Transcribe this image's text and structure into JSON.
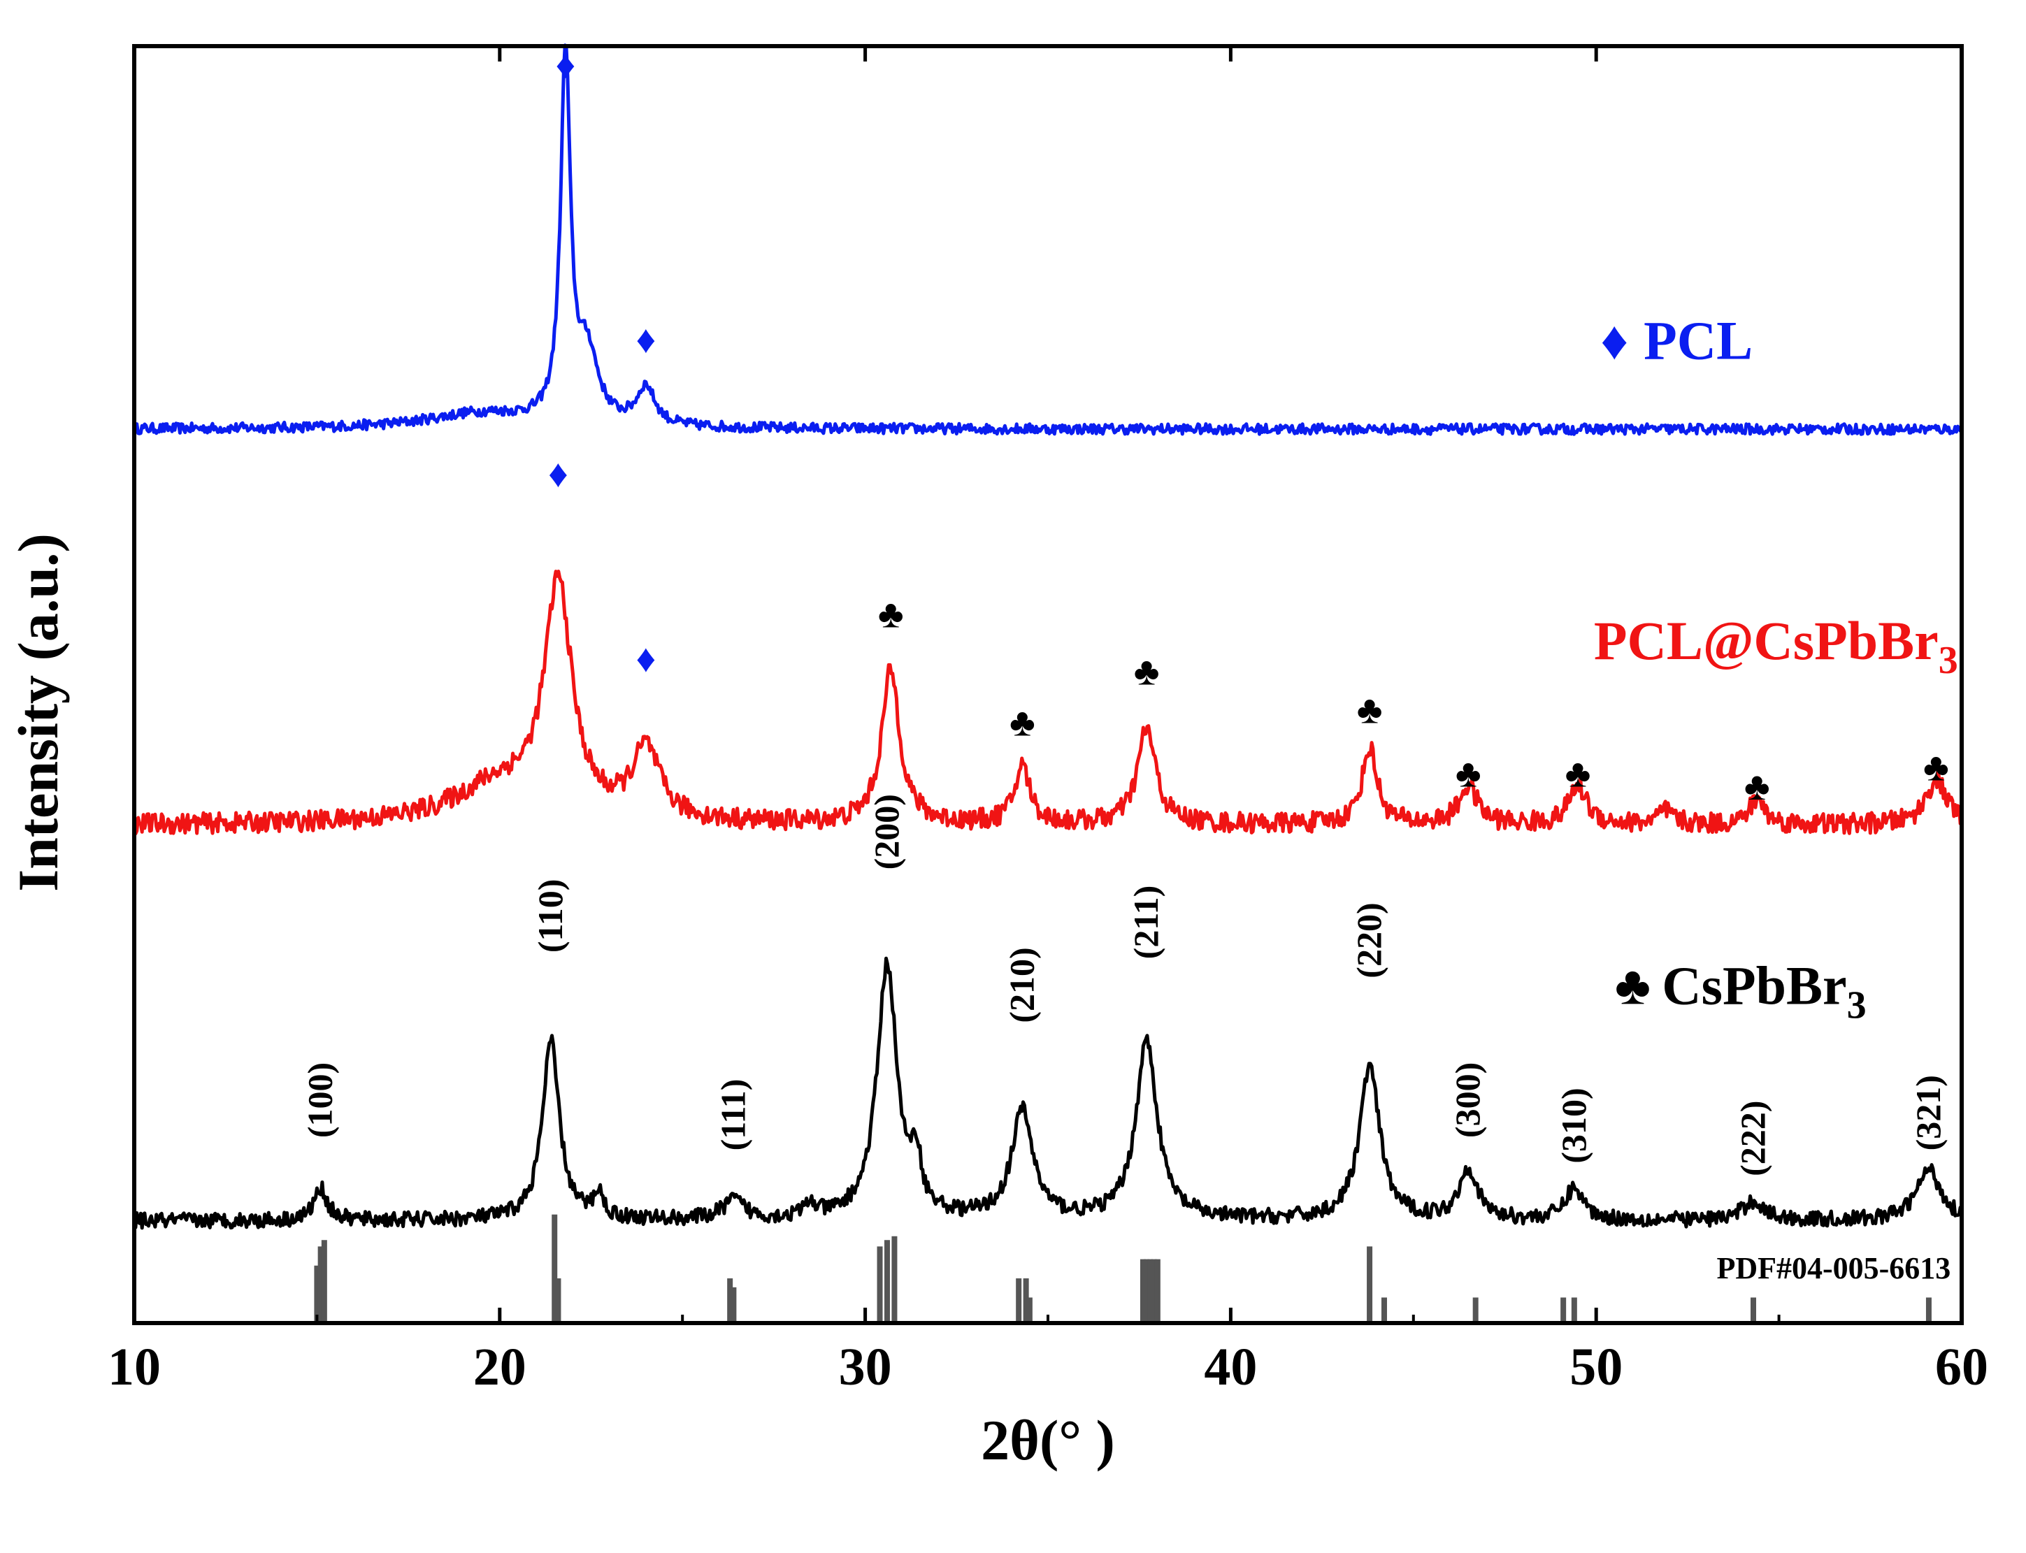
{
  "chart_data": {
    "type": "line",
    "xlabel": "2θ(°  )",
    "ylabel": "Intensity (a.u.)",
    "xlim": [
      10,
      60
    ],
    "xticks": [
      10,
      20,
      30,
      40,
      50,
      60
    ],
    "xtick_labels": [
      "10",
      "20",
      "30",
      "40",
      "50",
      "60"
    ],
    "yticks": "none",
    "grid": false,
    "series": [
      {
        "name": "PCL",
        "legend_label": "PCL",
        "legend_symbol": "♦",
        "color": "#0a1ef0",
        "baseline": 0.7,
        "noise": 0.004,
        "peaks": [
          {
            "x": 21.8,
            "height": 0.285,
            "width": 0.16
          },
          {
            "x": 22.4,
            "height": 0.055,
            "width": 0.35
          },
          {
            "x": 24.0,
            "height": 0.03,
            "width": 0.3
          },
          {
            "x": 19.5,
            "height": 0.012,
            "width": 1.8
          }
        ]
      },
      {
        "name": "PCL@CsPbBr3",
        "legend_label": "PCL@CsPbBr",
        "legend_sub": "3",
        "color": "#f01414",
        "baseline": 0.39,
        "noise": 0.008,
        "peaks": [
          {
            "x": 21.6,
            "height": 0.18,
            "width": 0.45
          },
          {
            "x": 24.0,
            "height": 0.055,
            "width": 0.45
          },
          {
            "x": 20.0,
            "height": 0.03,
            "width": 1.5
          },
          {
            "x": 30.7,
            "height": 0.12,
            "width": 0.3
          },
          {
            "x": 34.3,
            "height": 0.045,
            "width": 0.25
          },
          {
            "x": 37.7,
            "height": 0.075,
            "width": 0.3
          },
          {
            "x": 43.8,
            "height": 0.06,
            "width": 0.25
          },
          {
            "x": 46.5,
            "height": 0.03,
            "width": 0.3
          },
          {
            "x": 49.5,
            "height": 0.03,
            "width": 0.3
          },
          {
            "x": 51.9,
            "height": 0.01,
            "width": 0.25
          },
          {
            "x": 54.4,
            "height": 0.02,
            "width": 0.25
          },
          {
            "x": 59.3,
            "height": 0.035,
            "width": 0.35
          }
        ]
      },
      {
        "name": "CsPbBr3",
        "legend_label": "CsPbBr",
        "legend_sub": "3",
        "legend_symbol": "♣",
        "color": "#000000",
        "baseline": 0.08,
        "noise": 0.006,
        "peaks": [
          {
            "x": 15.1,
            "height": 0.025,
            "width": 0.22
          },
          {
            "x": 21.4,
            "height": 0.14,
            "width": 0.28
          },
          {
            "x": 22.7,
            "height": 0.02,
            "width": 0.15
          },
          {
            "x": 26.4,
            "height": 0.015,
            "width": 0.35
          },
          {
            "x": 28.5,
            "height": 0.01,
            "width": 0.2
          },
          {
            "x": 30.6,
            "height": 0.2,
            "width": 0.33
          },
          {
            "x": 31.4,
            "height": 0.04,
            "width": 0.15
          },
          {
            "x": 34.3,
            "height": 0.085,
            "width": 0.35
          },
          {
            "x": 37.7,
            "height": 0.14,
            "width": 0.35
          },
          {
            "x": 43.8,
            "height": 0.12,
            "width": 0.33
          },
          {
            "x": 46.5,
            "height": 0.04,
            "width": 0.3
          },
          {
            "x": 49.4,
            "height": 0.025,
            "width": 0.3
          },
          {
            "x": 54.3,
            "height": 0.015,
            "width": 0.35
          },
          {
            "x": 59.1,
            "height": 0.04,
            "width": 0.4
          }
        ]
      }
    ],
    "pcl_markers": [
      {
        "x": 21.8,
        "y": 0.975
      },
      {
        "x": 24.0,
        "y": 0.76
      }
    ],
    "hybrid_markers": [
      {
        "symbol": "♦",
        "x": 21.6,
        "y": 0.655
      },
      {
        "symbol": "♦",
        "x": 24.0,
        "y": 0.51
      },
      {
        "symbol": "♣",
        "x": 30.7,
        "y": 0.545
      },
      {
        "symbol": "♣",
        "x": 34.3,
        "y": 0.46
      },
      {
        "symbol": "♣",
        "x": 37.7,
        "y": 0.5
      },
      {
        "symbol": "♣",
        "x": 43.8,
        "y": 0.47
      },
      {
        "symbol": "♣",
        "x": 46.5,
        "y": 0.42
      },
      {
        "symbol": "♣",
        "x": 49.5,
        "y": 0.42
      },
      {
        "symbol": "♣",
        "x": 54.4,
        "y": 0.41
      },
      {
        "symbol": "♣",
        "x": 59.3,
        "y": 0.425
      }
    ],
    "miller_indices": [
      {
        "label": "(100)",
        "x": 15.1,
        "y": 0.145
      },
      {
        "label": "(110)",
        "x": 21.4,
        "y": 0.29
      },
      {
        "label": "(111)",
        "x": 26.4,
        "y": 0.135
      },
      {
        "label": "(200)",
        "x": 30.6,
        "y": 0.355
      },
      {
        "label": "(210)",
        "x": 34.3,
        "y": 0.235
      },
      {
        "label": "(211)",
        "x": 37.7,
        "y": 0.285
      },
      {
        "label": "(220)",
        "x": 43.8,
        "y": 0.27
      },
      {
        "label": "(300)",
        "x": 46.5,
        "y": 0.145
      },
      {
        "label": "(310)",
        "x": 49.4,
        "y": 0.125
      },
      {
        "label": "(222)",
        "x": 54.3,
        "y": 0.115
      },
      {
        "label": "(321)",
        "x": 59.1,
        "y": 0.135
      }
    ],
    "reference": {
      "label": "PDF#04-005-6613",
      "color": "#555555",
      "sticks": [
        {
          "x": 15.0,
          "h": 0.045
        },
        {
          "x": 15.1,
          "h": 0.06
        },
        {
          "x": 15.2,
          "h": 0.065
        },
        {
          "x": 21.5,
          "h": 0.085
        },
        {
          "x": 21.6,
          "h": 0.035
        },
        {
          "x": 26.3,
          "h": 0.035
        },
        {
          "x": 26.4,
          "h": 0.028
        },
        {
          "x": 30.4,
          "h": 0.06
        },
        {
          "x": 30.6,
          "h": 0.065
        },
        {
          "x": 30.8,
          "h": 0.068
        },
        {
          "x": 34.2,
          "h": 0.035
        },
        {
          "x": 34.4,
          "h": 0.035
        },
        {
          "x": 34.5,
          "h": 0.02
        },
        {
          "x": 37.6,
          "h": 0.05
        },
        {
          "x": 37.7,
          "h": 0.05
        },
        {
          "x": 37.8,
          "h": 0.05
        },
        {
          "x": 37.9,
          "h": 0.05
        },
        {
          "x": 38.0,
          "h": 0.05
        },
        {
          "x": 43.8,
          "h": 0.06
        },
        {
          "x": 44.2,
          "h": 0.02
        },
        {
          "x": 46.7,
          "h": 0.02
        },
        {
          "x": 49.1,
          "h": 0.02
        },
        {
          "x": 49.4,
          "h": 0.02
        },
        {
          "x": 54.3,
          "h": 0.02
        },
        {
          "x": 59.1,
          "h": 0.02
        }
      ]
    }
  }
}
